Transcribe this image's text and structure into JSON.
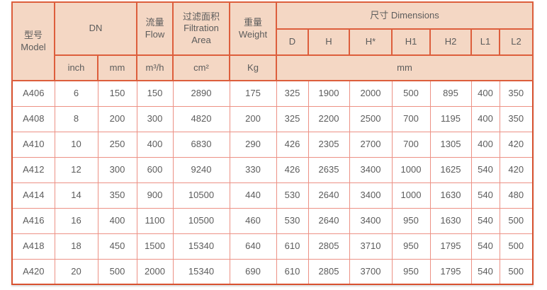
{
  "table": {
    "header": {
      "model_cn": "型号",
      "model_en": "Model",
      "dn": "DN",
      "flow_cn": "流量",
      "flow_en": "Flow",
      "area_cn": "过滤面积",
      "area_en": "Filtration Area",
      "weight_cn": "重量",
      "weight_en": "Weight",
      "dimensions": "尺寸 Dimensions",
      "dim_cols": [
        "D",
        "H",
        "H*",
        "H1",
        "H2",
        "L1",
        "L2"
      ],
      "unit_inch": "inch",
      "unit_mm": "mm",
      "unit_flow": "m³/h",
      "unit_area": "cm²",
      "unit_weight": "Kg",
      "unit_dimensions": "mm"
    },
    "rows": [
      [
        "A406",
        "6",
        "150",
        "150",
        "2890",
        "175",
        "325",
        "1900",
        "2000",
        "500",
        "895",
        "400",
        "350"
      ],
      [
        "A408",
        "8",
        "200",
        "300",
        "4820",
        "200",
        "325",
        "2200",
        "2500",
        "700",
        "1195",
        "400",
        "350"
      ],
      [
        "A410",
        "10",
        "250",
        "400",
        "6830",
        "290",
        "426",
        "2305",
        "2700",
        "700",
        "1305",
        "400",
        "420"
      ],
      [
        "A412",
        "12",
        "300",
        "600",
        "9240",
        "330",
        "426",
        "2635",
        "3400",
        "1000",
        "1625",
        "540",
        "420"
      ],
      [
        "A414",
        "14",
        "350",
        "900",
        "10500",
        "440",
        "530",
        "2640",
        "3400",
        "1000",
        "1630",
        "540",
        "480"
      ],
      [
        "A416",
        "16",
        "400",
        "1100",
        "10500",
        "460",
        "530",
        "2640",
        "3400",
        "950",
        "1630",
        "540",
        "500"
      ],
      [
        "A418",
        "18",
        "450",
        "1500",
        "15340",
        "640",
        "610",
        "2805",
        "3710",
        "950",
        "1795",
        "540",
        "500"
      ],
      [
        "A420",
        "20",
        "500",
        "2000",
        "15340",
        "690",
        "610",
        "2805",
        "3700",
        "950",
        "1795",
        "540",
        "500"
      ]
    ],
    "colors": {
      "header_background": "#f4d7c4",
      "border_strong": "#dd5e3c",
      "border_light": "#ec9185",
      "text": "#5c5c5c"
    }
  }
}
